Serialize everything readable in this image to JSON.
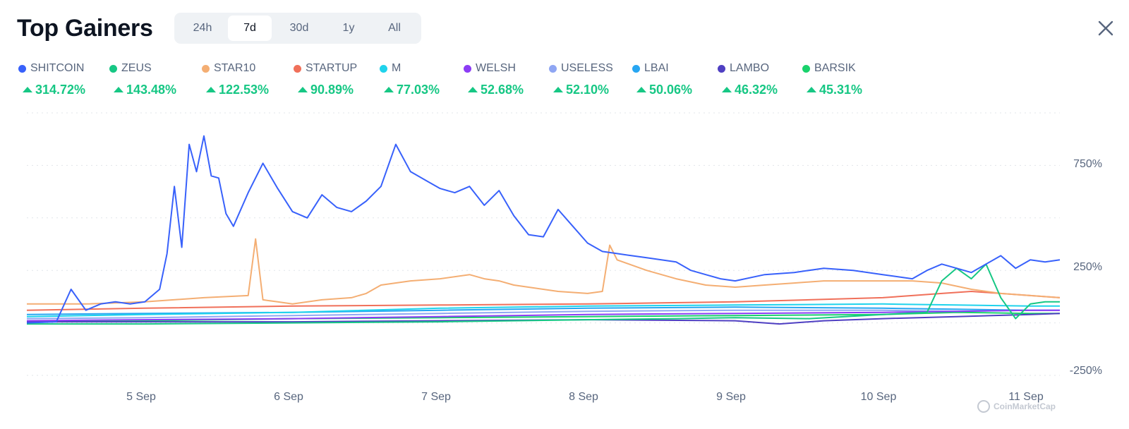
{
  "header": {
    "title": "Top Gainers",
    "tabs": [
      {
        "label": "24h",
        "active": false
      },
      {
        "label": "7d",
        "active": true
      },
      {
        "label": "30d",
        "active": false
      },
      {
        "label": "1y",
        "active": false
      },
      {
        "label": "All",
        "active": false
      }
    ],
    "close_icon": "close-icon"
  },
  "legend": [
    {
      "name": "SHITCOIN",
      "change": "314.72%",
      "color": "#3861fb"
    },
    {
      "name": "ZEUS",
      "change": "143.48%",
      "color": "#16c784"
    },
    {
      "name": "STAR10",
      "change": "122.53%",
      "color": "#f4ae73"
    },
    {
      "name": "STARTUP",
      "change": "90.89%",
      "color": "#f0705a"
    },
    {
      "name": "M",
      "change": "77.03%",
      "color": "#1fd3ec"
    },
    {
      "name": "WELSH",
      "change": "52.68%",
      "color": "#8c3cf5"
    },
    {
      "name": "USELESS",
      "change": "52.10%",
      "color": "#8fa6f3"
    },
    {
      "name": "LBAI",
      "change": "50.06%",
      "color": "#27a6f2"
    },
    {
      "name": "LAMBO",
      "change": "46.32%",
      "color": "#4f3fc2"
    },
    {
      "name": "BARSIK",
      "change": "45.31%",
      "color": "#19d26c"
    }
  ],
  "chart_data": {
    "type": "line",
    "x_unit": "days",
    "x_ticks": [
      "5 Sep",
      "6 Sep",
      "7 Sep",
      "8 Sep",
      "9 Sep",
      "10 Sep",
      "11 Sep"
    ],
    "y_ticks": [
      "750%",
      "250%",
      "-250%"
    ],
    "ylim": [
      -250,
      1000
    ],
    "grid": true,
    "watermark": "CoinMarketCap",
    "series": [
      {
        "name": "SHITCOIN",
        "color": "#3861fb",
        "x": [
          4.2,
          4.4,
          4.5,
          4.6,
          4.7,
          4.8,
          4.9,
          5.0,
          5.1,
          5.15,
          5.2,
          5.25,
          5.3,
          5.35,
          5.4,
          5.45,
          5.5,
          5.55,
          5.6,
          5.7,
          5.8,
          5.9,
          6.0,
          6.1,
          6.2,
          6.3,
          6.4,
          6.5,
          6.6,
          6.7,
          6.8,
          6.9,
          7.0,
          7.1,
          7.2,
          7.3,
          7.4,
          7.5,
          7.6,
          7.7,
          7.8,
          7.9,
          8.0,
          8.1,
          8.2,
          8.3,
          8.4,
          8.5,
          8.6,
          8.7,
          8.8,
          8.9,
          9.0,
          9.2,
          9.4,
          9.6,
          9.8,
          10.0,
          10.2,
          10.3,
          10.4,
          10.5,
          10.6,
          10.7,
          10.8,
          10.9,
          11.0,
          11.1,
          11.2
        ],
        "y": [
          0,
          5,
          160,
          60,
          90,
          100,
          90,
          100,
          160,
          330,
          650,
          360,
          850,
          720,
          890,
          700,
          690,
          520,
          460,
          620,
          760,
          640,
          530,
          500,
          610,
          550,
          530,
          580,
          650,
          850,
          720,
          680,
          640,
          620,
          650,
          560,
          630,
          510,
          420,
          410,
          540,
          460,
          380,
          340,
          330,
          320,
          310,
          300,
          290,
          250,
          230,
          210,
          200,
          230,
          240,
          260,
          250,
          230,
          210,
          250,
          280,
          260,
          240,
          280,
          320,
          260,
          300,
          290,
          300
        ]
      },
      {
        "name": "ZEUS",
        "color": "#16c784",
        "x": [
          4.2,
          5.0,
          6.0,
          7.0,
          8.0,
          8.6,
          9.0,
          9.5,
          10.0,
          10.3,
          10.4,
          10.5,
          10.6,
          10.7,
          10.8,
          10.9,
          11.0,
          11.1,
          11.2
        ],
        "y": [
          -5,
          -5,
          0,
          5,
          15,
          20,
          25,
          20,
          40,
          50,
          200,
          260,
          210,
          280,
          120,
          20,
          90,
          100,
          100
        ]
      },
      {
        "name": "STAR10",
        "color": "#f4ae73",
        "x": [
          4.2,
          4.6,
          5.0,
          5.4,
          5.7,
          5.75,
          5.8,
          5.9,
          6.0,
          6.2,
          6.4,
          6.5,
          6.6,
          6.8,
          7.0,
          7.2,
          7.3,
          7.4,
          7.5,
          7.6,
          7.8,
          8.0,
          8.1,
          8.15,
          8.2,
          8.4,
          8.6,
          8.8,
          9.0,
          9.2,
          9.4,
          9.6,
          9.8,
          10.0,
          10.2,
          10.4,
          10.6,
          10.8,
          11.0,
          11.2
        ],
        "y": [
          90,
          90,
          100,
          120,
          130,
          400,
          110,
          100,
          90,
          110,
          120,
          140,
          180,
          200,
          210,
          230,
          210,
          200,
          180,
          170,
          150,
          140,
          150,
          370,
          300,
          250,
          210,
          180,
          170,
          180,
          190,
          200,
          200,
          200,
          200,
          190,
          160,
          140,
          130,
          120
        ]
      },
      {
        "name": "STARTUP",
        "color": "#f0705a",
        "x": [
          4.2,
          5.0,
          6.0,
          7.0,
          8.0,
          8.5,
          9.0,
          9.5,
          10.0,
          10.2,
          10.4,
          10.6,
          10.8,
          11.0,
          11.2
        ],
        "y": [
          60,
          70,
          80,
          85,
          90,
          95,
          100,
          110,
          120,
          130,
          140,
          150,
          140,
          130,
          120
        ]
      },
      {
        "name": "M",
        "color": "#1fd3ec",
        "x": [
          4.2,
          5.0,
          6.0,
          7.0,
          8.0,
          9.0,
          10.0,
          10.5,
          11.0,
          11.2
        ],
        "y": [
          30,
          40,
          50,
          70,
          80,
          85,
          90,
          85,
          80,
          80
        ]
      },
      {
        "name": "WELSH",
        "color": "#8c3cf5",
        "x": [
          4.2,
          5.0,
          6.0,
          7.0,
          8.0,
          9.0,
          10.0,
          10.5,
          11.0,
          11.2
        ],
        "y": [
          10,
          15,
          20,
          30,
          40,
          45,
          50,
          55,
          60,
          60
        ]
      },
      {
        "name": "USELESS",
        "color": "#8fa6f3",
        "x": [
          4.2,
          5.0,
          6.0,
          7.0,
          8.0,
          9.0,
          10.0,
          10.5,
          11.0,
          11.2
        ],
        "y": [
          20,
          25,
          35,
          45,
          55,
          60,
          60,
          55,
          60,
          60
        ]
      },
      {
        "name": "LBAI",
        "color": "#27a6f2",
        "x": [
          4.2,
          5.0,
          6.0,
          7.0,
          8.0,
          9.0,
          10.0,
          10.5,
          11.0,
          11.2
        ],
        "y": [
          40,
          45,
          50,
          60,
          70,
          75,
          70,
          65,
          60,
          60
        ]
      },
      {
        "name": "LAMBO",
        "color": "#4f3fc2",
        "x": [
          4.2,
          5.0,
          6.0,
          7.0,
          8.0,
          9.0,
          9.3,
          9.6,
          10.0,
          10.5,
          11.0,
          11.2
        ],
        "y": [
          5,
          5,
          5,
          10,
          15,
          10,
          -5,
          10,
          20,
          30,
          40,
          45
        ]
      },
      {
        "name": "BARSIK",
        "color": "#19d26c",
        "x": [
          4.2,
          5.0,
          6.0,
          7.0,
          8.0,
          9.0,
          10.0,
          10.5,
          11.0,
          11.2
        ],
        "y": [
          5,
          10,
          20,
          25,
          30,
          35,
          40,
          50,
          45,
          45
        ]
      }
    ]
  }
}
